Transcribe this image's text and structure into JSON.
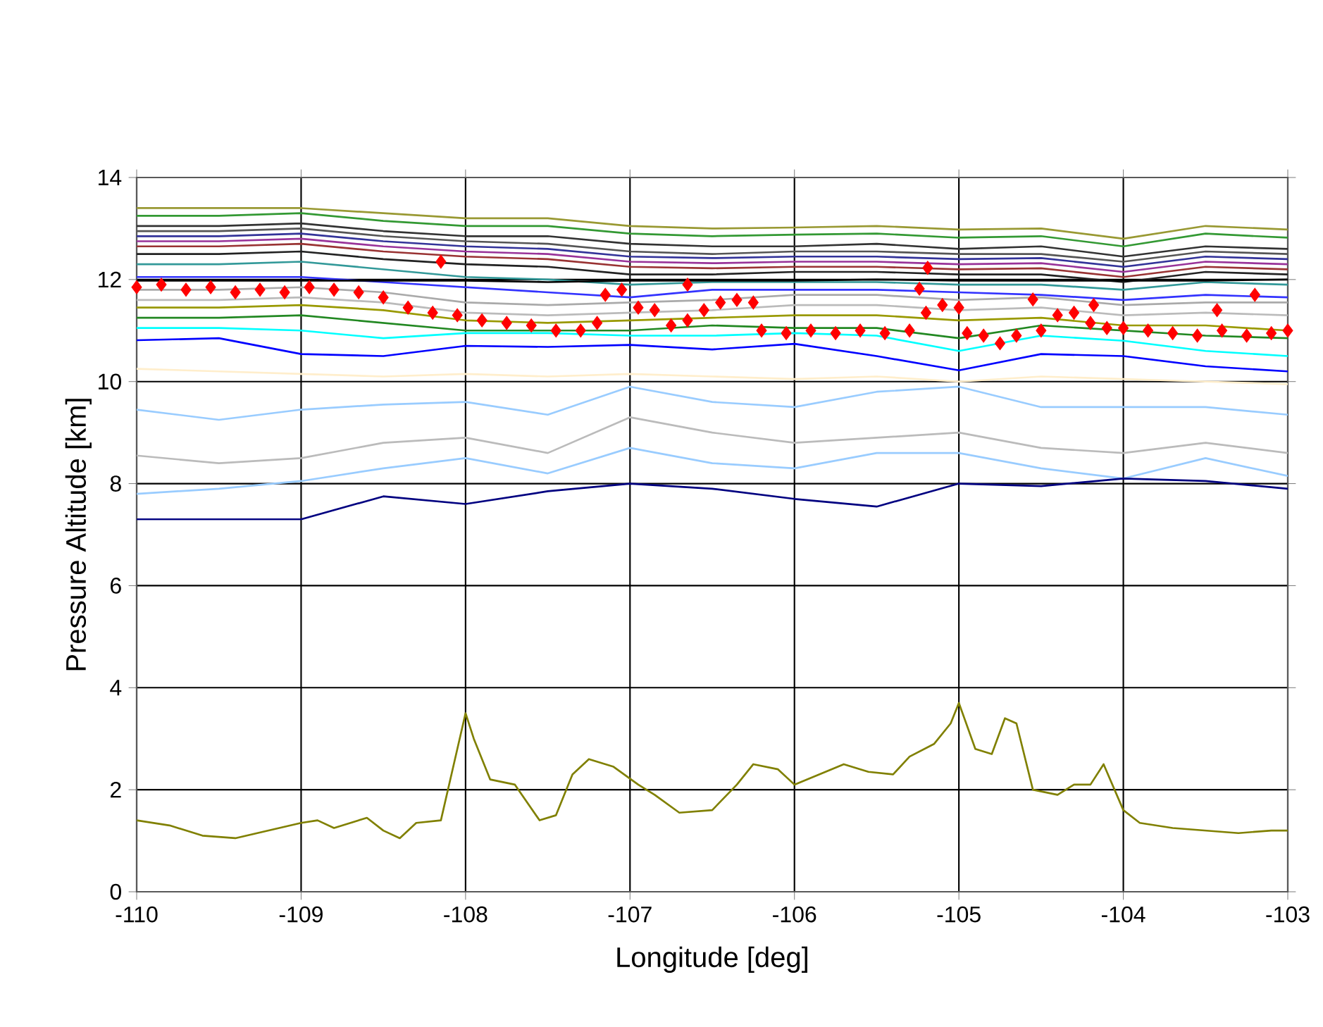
{
  "chart_data": {
    "type": "line",
    "xlabel": "Longitude [deg]",
    "ylabel": "Pressure Altitude [km]",
    "xlim": [
      -110,
      -103
    ],
    "xticks": [
      -110,
      -109,
      -108,
      -107,
      -106,
      -105,
      -104,
      -103
    ],
    "ylim": [
      0,
      14
    ],
    "yticks": [
      0,
      2,
      4,
      6,
      8,
      10,
      12,
      14
    ],
    "grid": true,
    "marker": "none",
    "x": [
      -110,
      -109.5,
      -109,
      -108.5,
      -108,
      -107.5,
      -107,
      -106.5,
      -106,
      -105.5,
      -105,
      -104.5,
      -104,
      -103.5,
      -103
    ],
    "series": [
      {
        "color": "#999933",
        "values": [
          13.4,
          13.4,
          13.4,
          13.3,
          13.2,
          13.2,
          13.05,
          13.0,
          13.02,
          13.05,
          12.98,
          13.0,
          12.8,
          13.05,
          12.98
        ]
      },
      {
        "color": "#339933",
        "values": [
          13.25,
          13.25,
          13.3,
          13.15,
          13.05,
          13.05,
          12.9,
          12.85,
          12.88,
          12.9,
          12.82,
          12.85,
          12.65,
          12.9,
          12.82
        ]
      },
      {
        "color": "#333333",
        "values": [
          13.05,
          13.05,
          13.1,
          12.95,
          12.85,
          12.85,
          12.7,
          12.65,
          12.65,
          12.7,
          12.6,
          12.65,
          12.45,
          12.65,
          12.6
        ]
      },
      {
        "color": "#555555",
        "values": [
          12.95,
          12.95,
          13.0,
          12.85,
          12.75,
          12.7,
          12.55,
          12.5,
          12.55,
          12.55,
          12.5,
          12.5,
          12.35,
          12.55,
          12.5
        ]
      },
      {
        "color": "#333399",
        "values": [
          12.85,
          12.85,
          12.9,
          12.75,
          12.65,
          12.6,
          12.45,
          12.42,
          12.45,
          12.45,
          12.4,
          12.42,
          12.25,
          12.45,
          12.4
        ]
      },
      {
        "color": "#993399",
        "values": [
          12.75,
          12.75,
          12.8,
          12.65,
          12.55,
          12.5,
          12.35,
          12.32,
          12.35,
          12.35,
          12.3,
          12.32,
          12.15,
          12.35,
          12.3
        ]
      },
      {
        "color": "#993333",
        "values": [
          12.65,
          12.65,
          12.7,
          12.55,
          12.45,
          12.4,
          12.25,
          12.22,
          12.25,
          12.25,
          12.2,
          12.22,
          12.05,
          12.25,
          12.2
        ]
      },
      {
        "color": "#222222",
        "values": [
          12.5,
          12.5,
          12.55,
          12.4,
          12.3,
          12.25,
          12.1,
          12.1,
          12.15,
          12.15,
          12.1,
          12.1,
          11.95,
          12.15,
          12.1
        ]
      },
      {
        "color": "#339999",
        "values": [
          12.3,
          12.3,
          12.35,
          12.2,
          12.05,
          12.0,
          11.9,
          11.95,
          11.95,
          11.95,
          11.9,
          11.9,
          11.8,
          11.95,
          11.9
        ]
      },
      {
        "color": "#3333ff",
        "values": [
          12.05,
          12.05,
          12.05,
          11.95,
          11.85,
          11.75,
          11.65,
          11.8,
          11.8,
          11.8,
          11.75,
          11.7,
          11.6,
          11.7,
          11.65
        ]
      },
      {
        "color": "#000000",
        "values": [
          11.98,
          11.98,
          11.98,
          11.98,
          11.98,
          11.95,
          11.98,
          11.98,
          11.98,
          12.0,
          11.98,
          11.98,
          11.98,
          11.98,
          12.0
        ]
      },
      {
        "color": "#aaaaaa",
        "values": [
          11.8,
          11.8,
          11.85,
          11.75,
          11.55,
          11.5,
          11.55,
          11.6,
          11.7,
          11.7,
          11.6,
          11.65,
          11.5,
          11.55,
          11.55
        ]
      },
      {
        "color": "#bbbbbb",
        "values": [
          11.6,
          11.6,
          11.65,
          11.55,
          11.35,
          11.3,
          11.35,
          11.4,
          11.5,
          11.5,
          11.4,
          11.45,
          11.3,
          11.35,
          11.3
        ]
      },
      {
        "color": "#999900",
        "values": [
          11.45,
          11.45,
          11.5,
          11.4,
          11.2,
          11.15,
          11.2,
          11.25,
          11.3,
          11.3,
          11.2,
          11.25,
          11.1,
          11.1,
          11.0
        ]
      },
      {
        "color": "#228822",
        "values": [
          11.25,
          11.25,
          11.3,
          11.15,
          11.0,
          11.0,
          11.0,
          11.1,
          11.05,
          11.05,
          10.85,
          11.1,
          11.0,
          10.9,
          10.85
        ]
      },
      {
        "color": "#00ffff",
        "values": [
          11.05,
          11.05,
          11.0,
          10.85,
          10.95,
          10.95,
          10.9,
          10.9,
          10.95,
          10.9,
          10.6,
          10.9,
          10.8,
          10.6,
          10.5
        ]
      },
      {
        "color": "#0000ff",
        "values": [
          10.81,
          10.85,
          10.54,
          10.5,
          10.7,
          10.68,
          10.72,
          10.63,
          10.74,
          10.5,
          10.22,
          10.54,
          10.5,
          10.3,
          10.2
        ]
      },
      {
        "color": "#ffeecc",
        "values": [
          10.25,
          10.2,
          10.15,
          10.1,
          10.15,
          10.1,
          10.15,
          10.1,
          10.05,
          10.1,
          10.0,
          10.1,
          10.05,
          10.0,
          9.95
        ]
      },
      {
        "color": "#99ccff",
        "values": [
          9.45,
          9.25,
          9.45,
          9.55,
          9.6,
          9.35,
          9.9,
          9.6,
          9.5,
          9.8,
          9.9,
          9.5,
          9.5,
          9.5,
          9.35
        ]
      },
      {
        "color": "#bbbbbb",
        "values": [
          8.55,
          8.4,
          8.5,
          8.8,
          8.9,
          8.6,
          9.3,
          9.0,
          8.8,
          8.9,
          9.0,
          8.7,
          8.6,
          8.8,
          8.6
        ]
      },
      {
        "color": "#99ccff",
        "values": [
          7.8,
          7.9,
          8.05,
          8.3,
          8.5,
          8.2,
          8.7,
          8.4,
          8.3,
          8.6,
          8.6,
          8.3,
          8.1,
          8.5,
          8.15
        ]
      },
      {
        "color": "#000080",
        "values": [
          7.3,
          7.3,
          7.3,
          7.75,
          7.6,
          7.85,
          8.0,
          7.9,
          7.7,
          7.55,
          8.0,
          7.95,
          8.1,
          8.05,
          7.9
        ]
      },
      {
        "color": "#808000",
        "x": [
          -110,
          -109.8,
          -109.6,
          -109.4,
          -109.2,
          -109,
          -108.9,
          -108.8,
          -108.6,
          -108.5,
          -108.4,
          -108.3,
          -108.15,
          -108.05,
          -108.0,
          -107.95,
          -107.85,
          -107.7,
          -107.55,
          -107.45,
          -107.35,
          -107.25,
          -107.1,
          -106.95,
          -106.85,
          -106.7,
          -106.5,
          -106.35,
          -106.25,
          -106.1,
          -106.0,
          -105.85,
          -105.7,
          -105.55,
          -105.4,
          -105.3,
          -105.15,
          -105.05,
          -105.0,
          -104.9,
          -104.8,
          -104.72,
          -104.65,
          -104.55,
          -104.4,
          -104.3,
          -104.2,
          -104.12,
          -104.0,
          -103.9,
          -103.7,
          -103.5,
          -103.3,
          -103.1,
          -103
        ],
        "values": [
          1.4,
          1.3,
          1.1,
          1.05,
          1.2,
          1.35,
          1.4,
          1.25,
          1.45,
          1.2,
          1.05,
          1.35,
          1.4,
          2.8,
          3.5,
          3.0,
          2.2,
          2.1,
          1.4,
          1.5,
          2.3,
          2.6,
          2.45,
          2.1,
          1.9,
          1.55,
          1.6,
          2.1,
          2.5,
          2.4,
          2.1,
          2.3,
          2.5,
          2.35,
          2.3,
          2.65,
          2.9,
          3.3,
          3.7,
          2.8,
          2.7,
          3.4,
          3.3,
          2.0,
          1.9,
          2.1,
          2.1,
          2.5,
          1.6,
          1.35,
          1.25,
          1.2,
          1.15,
          1.2,
          1.2
        ]
      },
      {
        "type": "scatter",
        "marker": "diamond",
        "color": "#ff0000",
        "x": [
          -110,
          -109.85,
          -109.7,
          -109.55,
          -109.4,
          -109.25,
          -109.1,
          -108.95,
          -108.8,
          -108.65,
          -108.5,
          -108.35,
          -108.2,
          -108.05,
          -107.9,
          -107.75,
          -107.6,
          -107.45,
          -107.3,
          -107.2,
          -107.15,
          -107.05,
          -106.95,
          -106.85,
          -106.75,
          -106.65,
          -106.55,
          -106.45,
          -106.35,
          -106.25,
          -106.2,
          -106.05,
          -105.9,
          -105.75,
          -105.6,
          -105.45,
          -105.3,
          -105.2,
          -105.1,
          -105.0,
          -104.95,
          -104.85,
          -104.75,
          -104.65,
          -104.5,
          -104.4,
          -104.3,
          -104.2,
          -104.1,
          -104.0,
          -103.85,
          -103.7,
          -103.55,
          -103.4,
          -103.25,
          -103.1,
          -103.0,
          -108.15,
          -106.65,
          -105.19,
          -105.24,
          -104.55,
          -104.18,
          -103.43,
          -103.2
        ],
        "values": [
          11.85,
          11.9,
          11.8,
          11.85,
          11.75,
          11.8,
          11.75,
          11.85,
          11.8,
          11.75,
          11.65,
          11.45,
          11.35,
          11.3,
          11.2,
          11.15,
          11.1,
          11.0,
          11.0,
          11.15,
          11.7,
          11.8,
          11.45,
          11.4,
          11.1,
          11.2,
          11.4,
          11.55,
          11.6,
          11.55,
          11.0,
          10.95,
          11.0,
          10.95,
          11.0,
          10.95,
          11.0,
          11.35,
          11.5,
          11.45,
          10.95,
          10.9,
          10.75,
          10.9,
          11.0,
          11.3,
          11.35,
          11.15,
          11.05,
          11.05,
          11.0,
          10.95,
          10.9,
          11.0,
          10.9,
          10.95,
          11.0,
          12.35,
          11.9,
          12.23,
          11.82,
          11.61,
          11.5,
          11.4,
          11.7
        ]
      }
    ]
  }
}
